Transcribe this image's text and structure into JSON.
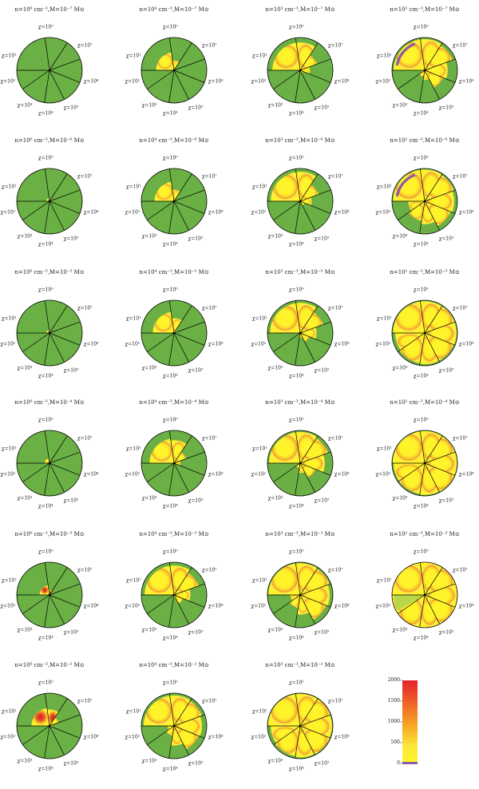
{
  "panels": [
    {
      "row": 0,
      "col": 0,
      "title": "n=10⁶ cm⁻³,M=10⁻⁷ M⊙",
      "rays": [
        "χ=10⁰",
        "χ=10¹",
        "χ=10²",
        "χ=10³",
        "χ=10⁴",
        "χ=10⁵",
        "χ=10⁶",
        "χ=10⁷"
      ],
      "sector_depth": [
        0.05,
        0,
        0,
        0,
        0,
        0,
        0,
        0
      ]
    },
    {
      "row": 0,
      "col": 1,
      "title": "n=10⁴ cm⁻³,M=10⁻⁷ M⊙",
      "rays": [
        "χ=10⁰",
        "χ=10¹",
        "χ=10²",
        "χ=10³",
        "χ=10⁴",
        "χ=10⁵",
        "χ=10⁶",
        "χ=10⁷"
      ],
      "sector_depth": [
        0.55,
        0.3,
        0,
        0,
        0,
        0,
        0,
        0
      ]
    },
    {
      "row": 0,
      "col": 2,
      "title": "n=10³ cm⁻³,M=10⁻⁷ M⊙",
      "rays": [
        "χ=10⁰",
        "χ=10¹",
        "χ=10²",
        "χ=10³",
        "χ=10⁴",
        "χ=10⁵",
        "χ=10⁶",
        "χ=10⁷"
      ],
      "sector_depth": [
        0.85,
        0.85,
        0.55,
        0.3,
        0.1,
        0,
        0,
        0
      ]
    },
    {
      "row": 0,
      "col": 3,
      "title": "n=10² cm⁻³,M=10⁻⁷ M⊙",
      "rays": [
        "χ=10⁰",
        "χ=10¹",
        "χ=10²",
        "χ=10³",
        "χ=10⁴",
        "χ=10⁵",
        "χ=10⁶",
        "χ=10⁷"
      ],
      "sector_depth": [
        0.95,
        0.95,
        0.9,
        0.7,
        0.6,
        0.3,
        0.2,
        0.1
      ],
      "purple": true
    },
    {
      "row": 1,
      "col": 0,
      "title": "n=10⁶ cm⁻³,M=10⁻⁶ M⊙",
      "rays": [
        "χ=10⁰",
        "χ=10¹",
        "χ=10²",
        "χ=10³",
        "χ=10⁴",
        "χ=10⁵",
        "χ=10⁶",
        "χ=10⁷"
      ],
      "sector_depth": [
        0.1,
        0,
        0,
        0,
        0,
        0,
        0,
        0
      ]
    },
    {
      "row": 1,
      "col": 1,
      "title": "n=10⁴ cm⁻³,M=10⁻⁶ M⊙",
      "rays": [
        "χ=10⁰",
        "χ=10¹",
        "χ=10²",
        "χ=10³",
        "χ=10⁴",
        "χ=10⁵",
        "χ=10⁶",
        "χ=10⁷"
      ],
      "sector_depth": [
        0.6,
        0.35,
        0.05,
        0,
        0,
        0,
        0,
        0
      ]
    },
    {
      "row": 1,
      "col": 2,
      "title": "n=10³ cm⁻³,M=10⁻⁶ M⊙",
      "rays": [
        "χ=10⁰",
        "χ=10¹",
        "χ=10²",
        "χ=10³",
        "χ=10⁴",
        "χ=10⁵",
        "χ=10⁶",
        "χ=10⁷"
      ],
      "sector_depth": [
        0.9,
        0.9,
        0.6,
        0.35,
        0.15,
        0,
        0,
        0
      ]
    },
    {
      "row": 1,
      "col": 3,
      "title": "n=10² cm⁻³,M=10⁻⁶ M⊙",
      "rays": [
        "χ=10⁰",
        "χ=10¹",
        "χ=10²",
        "χ=10³",
        "χ=10⁴",
        "χ=10⁵",
        "χ=10⁶",
        "χ=10⁷"
      ],
      "sector_depth": [
        0.97,
        0.97,
        0.95,
        0.9,
        0.85,
        0.7,
        0.6,
        0.5
      ],
      "purple": true
    },
    {
      "row": 2,
      "col": 0,
      "title": "n=10⁶ cm⁻³,M=10⁻⁵ M⊙",
      "rays": [
        "χ=10⁰",
        "χ=10¹",
        "χ=10²",
        "χ=10³",
        "χ=10⁴",
        "χ=10⁵",
        "χ=10⁶",
        "χ=10⁷"
      ],
      "sector_depth": [
        0.1,
        0.05,
        0,
        0,
        0,
        0,
        0,
        0
      ]
    },
    {
      "row": 2,
      "col": 1,
      "title": "n=10⁴ cm⁻³,M=10⁻⁵ M⊙",
      "rays": [
        "χ=10⁰",
        "χ=10¹",
        "χ=10²",
        "χ=10³",
        "χ=10⁴",
        "χ=10⁵",
        "χ=10⁶",
        "χ=10⁷"
      ],
      "sector_depth": [
        0.65,
        0.45,
        0.1,
        0,
        0,
        0,
        0,
        0
      ]
    },
    {
      "row": 2,
      "col": 2,
      "title": "n=10³ cm⁻³,M=10⁻⁵ M⊙",
      "rays": [
        "χ=10⁰",
        "χ=10¹",
        "χ=10²",
        "χ=10³",
        "χ=10⁴",
        "χ=10⁵",
        "χ=10⁶",
        "χ=10⁷"
      ],
      "sector_depth": [
        0.92,
        0.92,
        0.75,
        0.5,
        0.3,
        0.15,
        0,
        0
      ]
    },
    {
      "row": 2,
      "col": 3,
      "title": "n=10² cm⁻³,M=10⁻⁵ M⊙",
      "rays": [
        "χ=10⁰",
        "χ=10¹",
        "χ=10²",
        "χ=10³",
        "χ=10⁴",
        "χ=10⁵",
        "χ=10⁶",
        "χ=10⁷"
      ],
      "sector_depth": [
        0.97,
        0.97,
        0.97,
        0.97,
        0.95,
        0.95,
        0.93,
        0.9
      ]
    },
    {
      "row": 3,
      "col": 0,
      "title": "n=10⁶ cm⁻³,M=10⁻⁴ M⊙",
      "rays": [
        "χ=10⁰",
        "χ=10¹",
        "χ=10²",
        "χ=10³",
        "χ=10⁴",
        "χ=10⁵",
        "χ=10⁶",
        "χ=10⁷"
      ],
      "sector_depth": [
        0.15,
        0.05,
        0,
        0,
        0,
        0,
        0,
        0
      ]
    },
    {
      "row": 3,
      "col": 1,
      "title": "n=10⁴ cm⁻³,M=10⁻⁴ M⊙",
      "rays": [
        "χ=10⁰",
        "χ=10¹",
        "χ=10²",
        "χ=10³",
        "χ=10⁴",
        "χ=10⁵",
        "χ=10⁶",
        "χ=10⁷"
      ],
      "sector_depth": [
        0.75,
        0.7,
        0.4,
        0.2,
        0,
        0,
        0,
        0
      ]
    },
    {
      "row": 3,
      "col": 2,
      "title": "n=10³ cm⁻³,M=10⁻⁴ M⊙",
      "rays": [
        "χ=10⁰",
        "χ=10¹",
        "χ=10²",
        "χ=10³",
        "χ=10⁴",
        "χ=10⁵",
        "χ=10⁶",
        "χ=10⁷"
      ],
      "sector_depth": [
        0.95,
        0.95,
        0.9,
        0.75,
        0.5,
        0.3,
        0.15,
        0
      ]
    },
    {
      "row": 3,
      "col": 3,
      "title": "n=10² cm⁻³,M=10⁻⁴ M⊙",
      "rays": [
        "χ=10⁰",
        "χ=10¹",
        "χ=10²",
        "χ=10³",
        "χ=10⁴",
        "χ=10⁵",
        "χ=10⁶",
        "χ=10⁷"
      ],
      "sector_depth": [
        0.98,
        0.98,
        0.98,
        0.98,
        0.98,
        0.97,
        0.95,
        0.95
      ]
    },
    {
      "row": 4,
      "col": 0,
      "title": "n=10⁶ cm⁻³,M=10⁻³ M⊙",
      "rays": [
        "χ=10⁰",
        "χ=10¹",
        "χ=10²",
        "χ=10³",
        "χ=10⁴",
        "χ=10⁵",
        "χ=10⁶",
        "χ=10⁷"
      ],
      "sector_depth": [
        0.3,
        0.15,
        0,
        0,
        0,
        0,
        0,
        0
      ],
      "hot": true
    },
    {
      "row": 4,
      "col": 1,
      "title": "n=10⁴ cm⁻³,M=10⁻³ M⊙",
      "rays": [
        "χ=10⁰",
        "χ=10¹",
        "χ=10²",
        "χ=10³",
        "χ=10⁴",
        "χ=10⁵",
        "χ=10⁶",
        "χ=10⁷"
      ],
      "sector_depth": [
        0.9,
        0.9,
        0.8,
        0.5,
        0.3,
        0.1,
        0,
        0
      ]
    },
    {
      "row": 4,
      "col": 2,
      "title": "n=10³ cm⁻³,M=10⁻³ M⊙",
      "rays": [
        "χ=10⁰",
        "χ=10¹",
        "χ=10²",
        "χ=10³",
        "χ=10⁴",
        "χ=10⁵",
        "χ=10⁶",
        "χ=10⁷"
      ],
      "sector_depth": [
        0.97,
        0.97,
        0.95,
        0.9,
        0.85,
        0.6,
        0.4,
        0.3
      ]
    },
    {
      "row": 4,
      "col": 3,
      "title": "n=10² cm⁻³,M=10⁻³ M⊙",
      "rays": [
        "χ=10⁰",
        "χ=10¹",
        "χ=10²",
        "χ=10³",
        "χ=10⁴",
        "χ=10⁵",
        "χ=10⁶",
        "χ=10⁷"
      ],
      "sector_depth": [
        1,
        1,
        1,
        1,
        1,
        1,
        1,
        1
      ],
      "pale_wedge": true
    },
    {
      "row": 5,
      "col": 0,
      "title": "n=10⁶ cm⁻³,M=10⁻² M⊙",
      "rays": [
        "χ=10⁰",
        "χ=10¹",
        "χ=10²",
        "χ=10³",
        "χ=10⁴",
        "χ=10⁵",
        "χ=10⁶",
        "χ=10⁷"
      ],
      "sector_depth": [
        0.55,
        0.5,
        0.3,
        0.1,
        0,
        0,
        0,
        0
      ],
      "hot": true
    },
    {
      "row": 5,
      "col": 1,
      "title": "n=10⁴ cm⁻³,M=10⁻² M⊙",
      "rays": [
        "χ=10⁰",
        "χ=10¹",
        "χ=10²",
        "χ=10³",
        "χ=10⁴",
        "χ=10⁵",
        "χ=10⁶",
        "χ=10⁷"
      ],
      "sector_depth": [
        0.93,
        0.93,
        0.9,
        0.85,
        0.8,
        0.6,
        0.3,
        0.2
      ]
    },
    {
      "row": 5,
      "col": 2,
      "title": "n=10³ cm⁻³,M=10⁻² M⊙",
      "rays": [
        "χ=10⁰",
        "χ=10¹",
        "χ=10²",
        "χ=10³",
        "χ=10⁴",
        "χ=10⁵",
        "χ=10⁶",
        "χ=10⁷"
      ],
      "sector_depth": [
        0.98,
        0.98,
        0.98,
        0.97,
        0.97,
        0.96,
        0.93,
        0.9
      ]
    }
  ],
  "colorbar": {
    "ticks": [
      "2000",
      "1500",
      "1000",
      "500",
      "0"
    ],
    "colors": {
      "high": "#e8272a",
      "mid": "#f39320",
      "low": "#fbe44a",
      "base": "#fffb2e",
      "floor": "#8b5fa8"
    }
  },
  "colors": {
    "green": "#6ab045",
    "yellow": "#fff22a",
    "orange": "#f5a623",
    "red": "#e63b2e",
    "purple": "#8e5aa8",
    "line": "#000000"
  }
}
